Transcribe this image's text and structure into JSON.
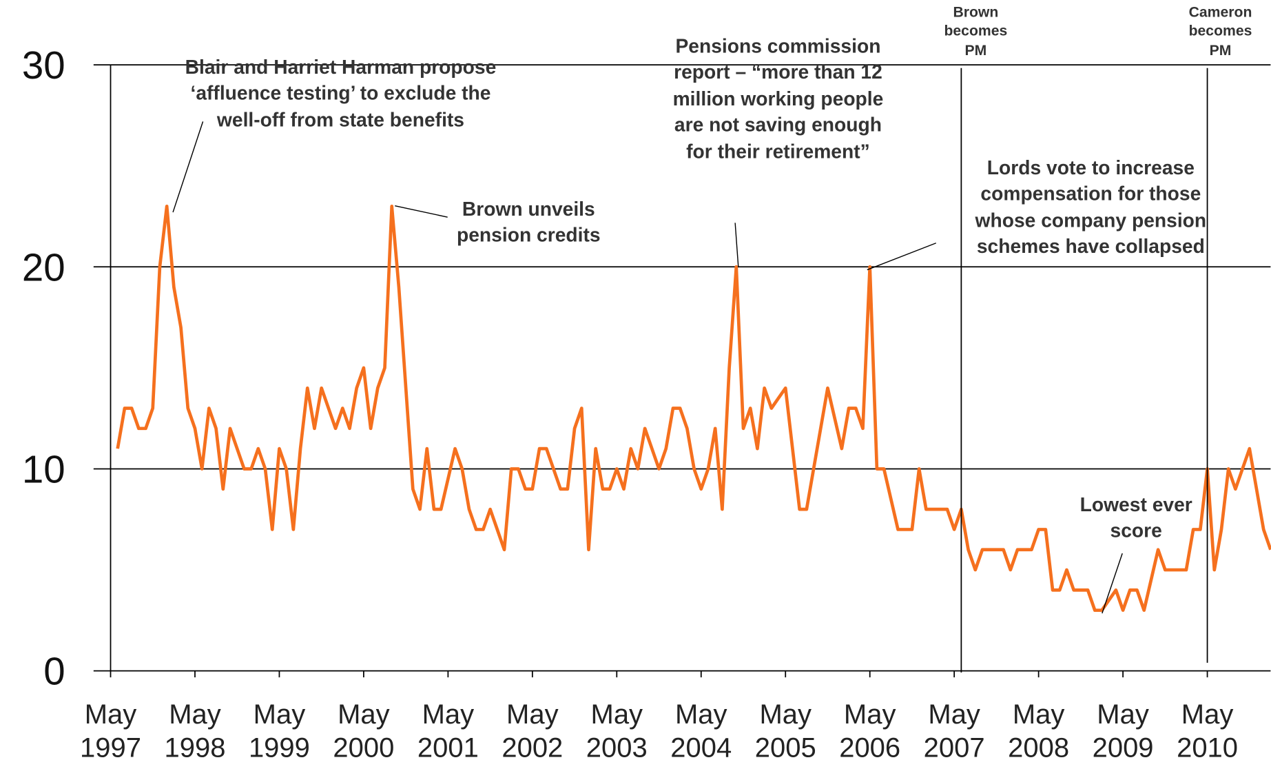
{
  "chart_data": {
    "type": "line",
    "x": [
      "1997-06",
      "1997-07",
      "1997-08",
      "1997-09",
      "1997-10",
      "1997-11",
      "1997-12",
      "1998-01",
      "1998-02",
      "1998-03",
      "1998-04",
      "1998-05",
      "1998-06",
      "1998-07",
      "1998-08",
      "1998-09",
      "1998-10",
      "1998-11",
      "1998-12",
      "1999-01",
      "1999-02",
      "1999-03",
      "1999-04",
      "1999-05",
      "1999-06",
      "1999-07",
      "1999-08",
      "1999-09",
      "1999-10",
      "1999-11",
      "1999-12",
      "2000-01",
      "2000-02",
      "2000-03",
      "2000-04",
      "2000-05",
      "2000-06",
      "2000-07",
      "2000-08",
      "2000-09",
      "2000-10",
      "2000-11",
      "2000-12",
      "2001-01",
      "2001-02",
      "2001-03",
      "2001-04",
      "2001-05",
      "2001-06",
      "2001-07",
      "2001-08",
      "2001-09",
      "2001-10",
      "2001-11",
      "2001-12",
      "2002-01",
      "2002-02",
      "2002-03",
      "2002-04",
      "2002-05",
      "2002-06",
      "2002-07",
      "2002-08",
      "2002-09",
      "2002-10",
      "2002-11",
      "2002-12",
      "2003-01",
      "2003-02",
      "2003-03",
      "2003-04",
      "2003-05",
      "2003-06",
      "2003-07",
      "2003-08",
      "2003-09",
      "2003-10",
      "2003-11",
      "2003-12",
      "2004-01",
      "2004-02",
      "2004-03",
      "2004-04",
      "2004-05",
      "2004-06",
      "2004-07",
      "2004-08",
      "2004-09",
      "2004-10",
      "2004-11",
      "2004-12",
      "2005-01",
      "2005-02",
      "2005-03",
      "2005-04",
      "2005-05",
      "2005-06",
      "2005-07",
      "2005-08",
      "2005-09",
      "2005-10",
      "2005-11",
      "2005-12",
      "2006-01",
      "2006-02",
      "2006-03",
      "2006-04",
      "2006-05",
      "2006-06",
      "2006-07",
      "2006-08",
      "2006-09",
      "2006-10",
      "2006-11",
      "2006-12",
      "2007-01",
      "2007-02",
      "2007-03",
      "2007-04",
      "2007-05",
      "2007-06",
      "2007-07",
      "2007-08",
      "2007-09",
      "2007-10",
      "2007-11",
      "2007-12",
      "2008-01",
      "2008-02",
      "2008-03",
      "2008-04",
      "2008-05",
      "2008-06",
      "2008-07",
      "2008-08",
      "2008-09",
      "2008-10",
      "2008-11",
      "2008-12",
      "2009-01",
      "2009-02",
      "2009-03",
      "2009-04",
      "2009-05",
      "2009-06",
      "2009-07",
      "2009-08",
      "2009-09",
      "2009-10",
      "2009-11",
      "2009-12",
      "2010-01",
      "2010-02",
      "2010-03",
      "2010-04",
      "2010-05",
      "2010-06",
      "2010-07",
      "2010-08",
      "2010-09",
      "2010-10",
      "2010-11",
      "2010-12",
      "2011-01",
      "2011-02"
    ],
    "values": [
      11,
      13,
      13,
      12,
      12,
      13,
      20,
      23,
      19,
      17,
      13,
      12,
      10,
      13,
      12,
      9,
      12,
      11,
      10,
      10,
      11,
      10,
      7,
      11,
      10,
      7,
      11,
      14,
      12,
      14,
      13,
      12,
      13,
      12,
      14,
      15,
      12,
      14,
      15,
      23,
      19,
      14,
      9,
      8,
      11,
      8,
      8,
      9.5,
      11,
      10,
      8,
      7,
      7,
      8,
      7,
      6,
      10,
      10,
      9,
      9,
      11,
      11,
      10,
      9,
      9,
      12,
      13,
      6,
      11,
      9,
      9,
      10,
      9,
      11,
      10,
      12,
      11,
      10,
      11,
      13,
      13,
      12,
      10,
      9,
      10,
      12,
      8,
      15,
      20,
      12,
      13,
      11,
      14,
      13,
      13.5,
      14,
      11,
      8,
      8,
      10,
      12,
      14,
      12.5,
      11,
      13,
      13,
      12,
      20,
      10,
      10,
      8.5,
      7,
      7,
      7,
      10,
      8,
      8,
      8,
      8,
      7,
      8,
      6,
      5,
      6,
      6,
      6,
      6,
      5,
      6,
      6,
      6,
      7,
      7,
      4,
      4,
      5,
      4,
      4,
      4,
      3,
      3,
      3.5,
      4,
      3,
      4,
      4,
      3,
      4.5,
      6,
      5,
      5,
      5,
      5,
      7,
      7,
      10,
      5,
      7,
      10,
      9,
      10,
      11,
      9,
      7,
      6
    ],
    "color": "#f5701e",
    "xlim": [
      "1997-05",
      "2011-02"
    ],
    "xticks": [
      {
        "value": "1997-05",
        "label": "May 1997"
      },
      {
        "value": "1998-05",
        "label": "May 1998"
      },
      {
        "value": "1999-05",
        "label": "May 1999"
      },
      {
        "value": "2000-05",
        "label": "May 2000"
      },
      {
        "value": "2001-05",
        "label": "May 2001"
      },
      {
        "value": "2002-05",
        "label": "May 2002"
      },
      {
        "value": "2003-05",
        "label": "May 2003"
      },
      {
        "value": "2004-05",
        "label": "May 2004"
      },
      {
        "value": "2005-05",
        "label": "May 2005"
      },
      {
        "value": "2006-05",
        "label": "May 2006"
      },
      {
        "value": "2007-05",
        "label": "May 2007"
      },
      {
        "value": "2008-05",
        "label": "May 2008"
      },
      {
        "value": "2009-05",
        "label": "May 2009"
      },
      {
        "value": "2010-05",
        "label": "May 2010"
      }
    ],
    "ylim": [
      0,
      30
    ],
    "yticks": [
      0,
      10,
      20,
      30
    ],
    "grid": true,
    "annotations": [
      {
        "text": "Blair and Harriet Harman propose ‘affluence testing’ to exclude the well-off from state benefits"
      },
      {
        "text": "Brown unveils pension credits"
      },
      {
        "text": "Pensions commission report – “more than 12 million working people are not saving enough for their retirement”"
      },
      {
        "text": "Lords vote to increase compensation for those whose company pension schemes have collapsed"
      },
      {
        "text": "Lowest ever score"
      },
      {
        "text": "Brown becomes PM",
        "x": "2007-06"
      },
      {
        "text": "Cameron becomes PM",
        "x": "2010-05"
      }
    ]
  }
}
